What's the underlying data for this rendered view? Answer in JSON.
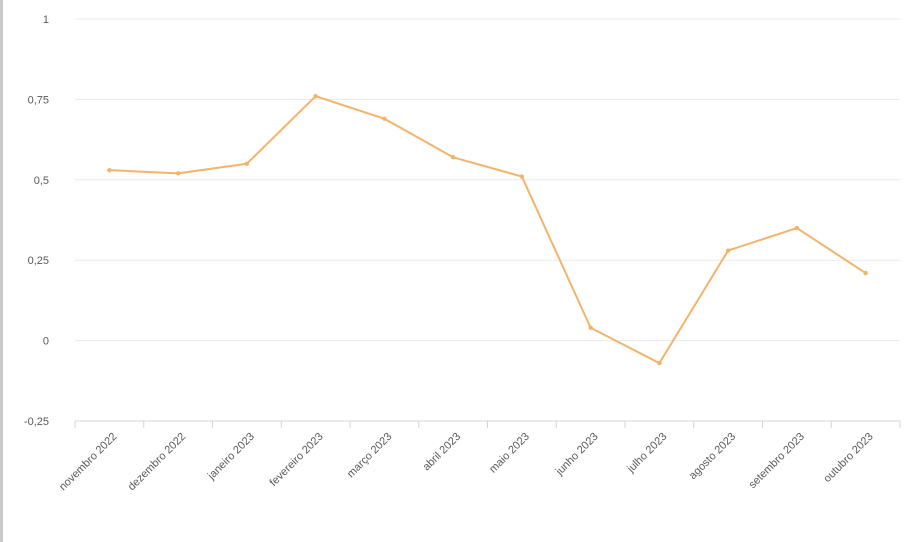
{
  "chart_data": {
    "type": "line",
    "title": "",
    "xlabel": "",
    "ylabel": "",
    "categories": [
      "novembro 2022",
      "dezembro 2022",
      "janeiro 2023",
      "fevereiro 2023",
      "março 2023",
      "abril 2023",
      "maio 2023",
      "junho 2023",
      "julho 2023",
      "agosto 2023",
      "setembro 2023",
      "outubro 2023"
    ],
    "series": [
      {
        "values": [
          0.53,
          0.52,
          0.55,
          0.76,
          0.69,
          0.57,
          0.51,
          0.04,
          -0.07,
          0.28,
          0.35,
          0.21
        ],
        "color": "#f4b36a"
      }
    ],
    "ylim": [
      -0.25,
      1
    ],
    "y_ticks": [
      1,
      0.75,
      0.5,
      0.25,
      0,
      -0.25
    ],
    "y_tick_labels": [
      "1",
      "0,75",
      "0,5",
      "0,25",
      "0",
      "-0,25"
    ],
    "grid": true,
    "legend": "none",
    "colors": {
      "line": "#f4b36a",
      "grid": "#e6eaf0",
      "axis": "#d0d4da",
      "text": "#595959"
    }
  }
}
